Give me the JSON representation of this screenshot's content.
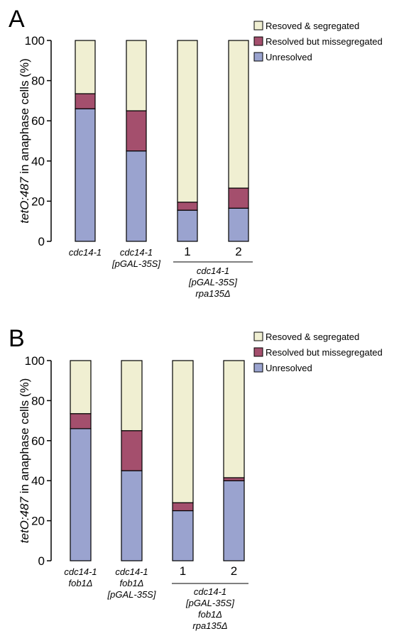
{
  "colors": {
    "resolved_segregated": "#f0efd2",
    "resolved_missegregated": "#a44f6d",
    "unresolved": "#9aa3cf",
    "axis": "#000000"
  },
  "chart_data": [
    {
      "type": "bar",
      "stacked": true,
      "panel_label": "A",
      "ylabel_italic": "tetO:487",
      "ylabel_rest": " in anaphase cells (%)",
      "ylim": [
        0,
        100
      ],
      "yticks": [
        "0",
        "20",
        "40",
        "60",
        "80",
        "100"
      ],
      "legend_position": "top-right",
      "legend": [
        "Resoved & segregated",
        "Resolved but missegregated",
        "Unresolved"
      ],
      "categories": [
        {
          "lines": [
            "cdc14-1"
          ]
        },
        {
          "lines": [
            "cdc14-1",
            "[pGAL-35S]"
          ]
        },
        {
          "lines": [
            "1"
          ]
        },
        {
          "lines": [
            "2"
          ]
        }
      ],
      "group_label_lines": [
        "cdc14-1",
        "[pGAL-35S]",
        "rpa135Δ"
      ],
      "series": [
        {
          "name": "Unresolved",
          "values": [
            66,
            45,
            15.5,
            16.5
          ]
        },
        {
          "name": "Resolved but missegregated",
          "values": [
            7.5,
            20,
            4,
            10
          ]
        },
        {
          "name": "Resoved & segregated",
          "values": [
            26.5,
            35,
            80.5,
            73.5
          ]
        }
      ]
    },
    {
      "type": "bar",
      "stacked": true,
      "panel_label": "B",
      "ylabel_italic": "tetO:487",
      "ylabel_rest": " in anaphase cells (%)",
      "ylim": [
        0,
        100
      ],
      "yticks": [
        "0",
        "20",
        "40",
        "60",
        "80",
        "100"
      ],
      "legend_position": "top-right",
      "legend": [
        "Resoved & segregated",
        "Resolved but missegregated",
        "Unresolved"
      ],
      "categories": [
        {
          "lines": [
            "cdc14-1",
            "fob1Δ"
          ]
        },
        {
          "lines": [
            "cdc14-1",
            "fob1Δ",
            "[pGAL-35S]"
          ]
        },
        {
          "lines": [
            "1"
          ]
        },
        {
          "lines": [
            "2"
          ]
        }
      ],
      "group_label_lines": [
        "cdc14-1",
        "[pGAL-35S]",
        "fob1Δ",
        "rpa135Δ"
      ],
      "series": [
        {
          "name": "Unresolved",
          "values": [
            66,
            45,
            25,
            40
          ]
        },
        {
          "name": "Resolved but missegregated",
          "values": [
            7.5,
            20,
            4,
            1.5
          ]
        },
        {
          "name": "Resoved & segregated",
          "values": [
            26.5,
            35,
            71,
            58.5
          ]
        }
      ]
    }
  ]
}
